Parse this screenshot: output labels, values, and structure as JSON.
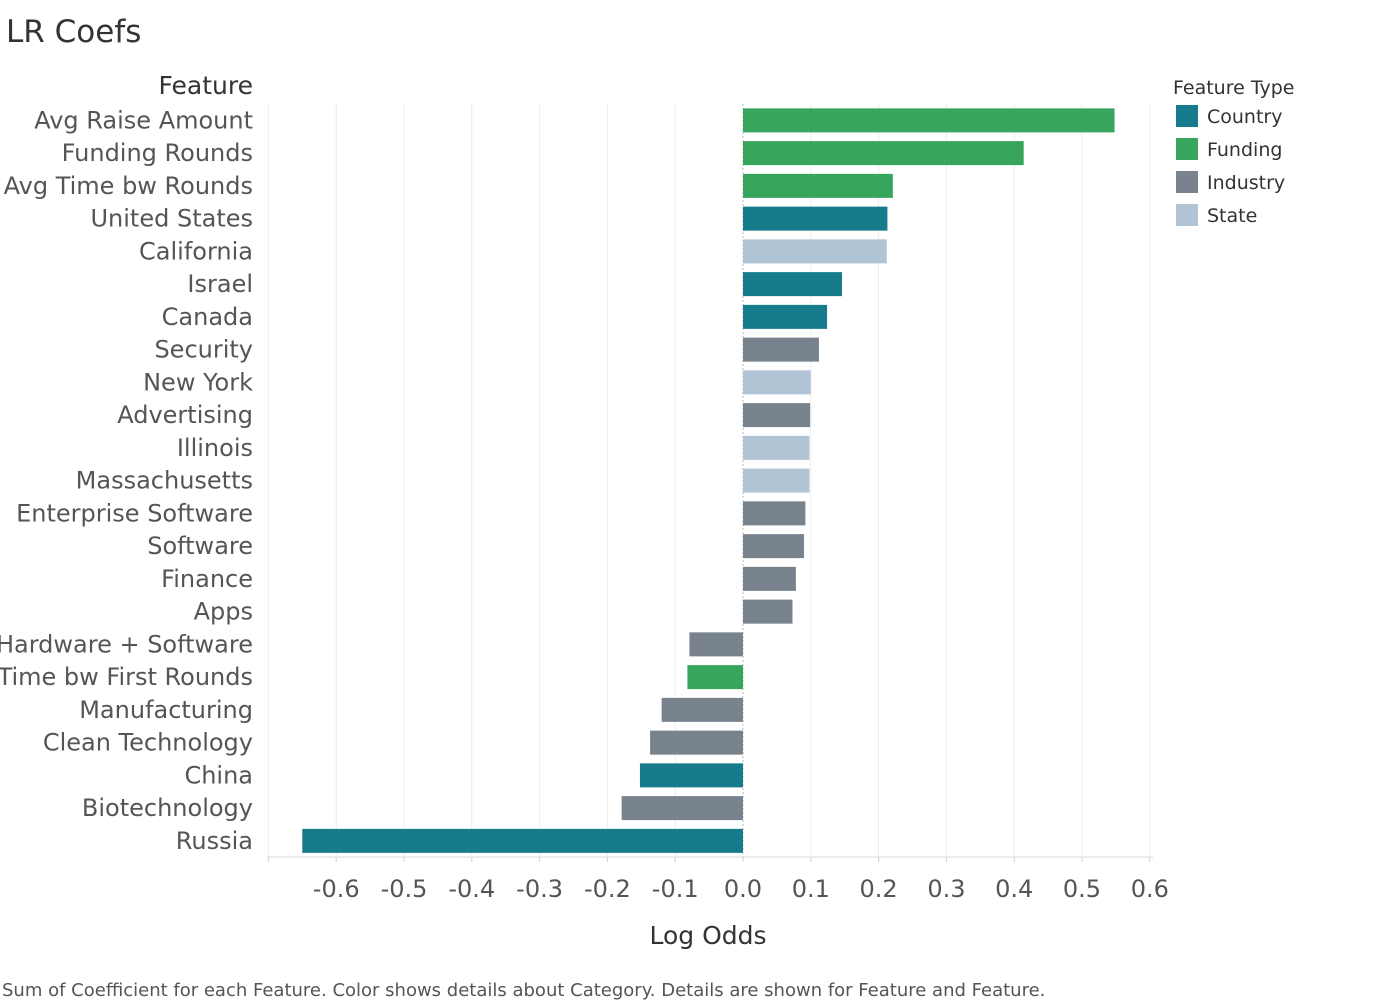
{
  "chart_data": {
    "type": "bar",
    "orientation": "horizontal",
    "title": "LR Coefs",
    "category_header": "Feature",
    "xlabel": "Log Odds",
    "xlim": [
      -0.7,
      0.6
    ],
    "xticks": [
      -0.6,
      -0.5,
      -0.4,
      -0.3,
      -0.2,
      -0.1,
      0.0,
      0.1,
      0.2,
      0.3,
      0.4,
      0.5,
      0.6
    ],
    "xtick_labels": [
      "-0.6",
      "-0.5",
      "-0.4",
      "-0.3",
      "-0.2",
      "-0.1",
      "0.0",
      "0.1",
      "0.2",
      "0.3",
      "0.4",
      "0.5",
      "0.6"
    ],
    "grid": true,
    "legend_position": "top-right",
    "legend_title": "Feature Type",
    "legend": [
      {
        "name": "Country",
        "color": "#167b8a"
      },
      {
        "name": "Funding",
        "color": "#38a55c"
      },
      {
        "name": "Industry",
        "color": "#78838e"
      },
      {
        "name": "State",
        "color": "#b0c4d5"
      }
    ],
    "bars": [
      {
        "label": "Avg Raise Amount",
        "value": 0.548,
        "type": "Funding"
      },
      {
        "label": "Funding Rounds",
        "value": 0.414,
        "type": "Funding"
      },
      {
        "label": "Avg Time bw Rounds",
        "value": 0.221,
        "type": "Funding"
      },
      {
        "label": "United States",
        "value": 0.213,
        "type": "Country"
      },
      {
        "label": "California",
        "value": 0.212,
        "type": "State"
      },
      {
        "label": "Israel",
        "value": 0.146,
        "type": "Country"
      },
      {
        "label": "Canada",
        "value": 0.124,
        "type": "Country"
      },
      {
        "label": "Security",
        "value": 0.112,
        "type": "Industry"
      },
      {
        "label": "New York",
        "value": 0.1,
        "type": "State"
      },
      {
        "label": "Advertising",
        "value": 0.099,
        "type": "Industry"
      },
      {
        "label": "Illinois",
        "value": 0.098,
        "type": "State"
      },
      {
        "label": "Massachusetts",
        "value": 0.098,
        "type": "State"
      },
      {
        "label": "Enterprise Software",
        "value": 0.092,
        "type": "Industry"
      },
      {
        "label": "Software",
        "value": 0.09,
        "type": "Industry"
      },
      {
        "label": "Finance",
        "value": 0.078,
        "type": "Industry"
      },
      {
        "label": "Apps",
        "value": 0.073,
        "type": "Industry"
      },
      {
        "label": "Hardware + Software",
        "value": -0.079,
        "type": "Industry"
      },
      {
        "label": "Time bw First Rounds",
        "value": -0.082,
        "type": "Funding"
      },
      {
        "label": "Manufacturing",
        "value": -0.12,
        "type": "Industry"
      },
      {
        "label": "Clean Technology",
        "value": -0.137,
        "type": "Industry"
      },
      {
        "label": "China",
        "value": -0.152,
        "type": "Country"
      },
      {
        "label": "Biotechnology",
        "value": -0.179,
        "type": "Industry"
      },
      {
        "label": "Russia",
        "value": -0.65,
        "type": "Country"
      }
    ]
  },
  "caption": "Sum of Coefficient for each Feature.  Color shows details about Category.  Details are shown for Feature and Feature."
}
